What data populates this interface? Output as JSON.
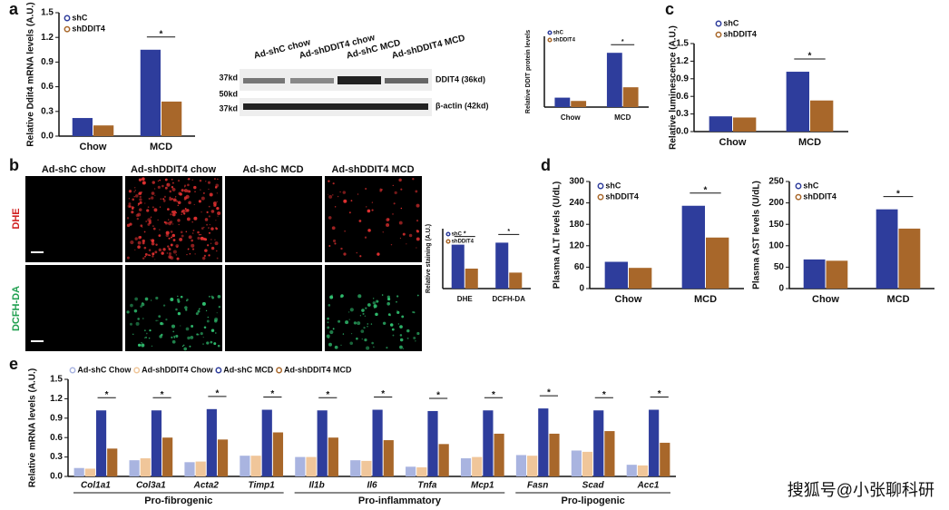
{
  "panel_labels": [
    "a",
    "b",
    "c",
    "d",
    "e"
  ],
  "blot": {
    "lanes": [
      "Ad-shC chow",
      "Ad-shDDIT4 chow",
      "Ad-shC MCD",
      "Ad-shDDIT4 MCD"
    ],
    "markers": [
      "37kd",
      "50kd",
      "37kd"
    ],
    "bands": [
      "DDIT4 (36kd)",
      "β-actin (42kd)"
    ]
  },
  "staining": {
    "columns": [
      "Ad-shC chow",
      "Ad-shDDIT4 chow",
      "Ad-shC MCD",
      "Ad-shDDIT4 MCD"
    ],
    "rows": [
      "DHE",
      "DCFH-DA"
    ]
  },
  "watermark": "搜狐号@小张聊科研",
  "chart_data": [
    {
      "type": "bar",
      "y_label": "Relative Ddit4 mRNA levels (A.U.)",
      "categories": [
        "Chow",
        "MCD"
      ],
      "series": [
        {
          "name": "shC",
          "color": "#2e3d9c",
          "values": [
            0.22,
            1.05
          ]
        },
        {
          "name": "shDDIT4",
          "color": "#a8672a",
          "values": [
            0.13,
            0.42
          ]
        }
      ],
      "significance": [
        null,
        "*"
      ],
      "ylim": [
        0,
        1.5
      ],
      "yticks": [
        {
          "value": 0,
          "label": "0.0"
        },
        0.3,
        0.6,
        0.9,
        1.2,
        1.5
      ]
    },
    {
      "type": "bar",
      "y_label": "Relative DDIT protein levels",
      "categories": [
        "Chow",
        "MCD"
      ],
      "series": [
        {
          "name": "shC",
          "color": "#2e3d9c",
          "values": [
            0.2,
            1.15
          ]
        },
        {
          "name": "shDDIT4",
          "color": "#a8672a",
          "values": [
            0.13,
            0.42
          ]
        }
      ],
      "significance": [
        null,
        "*"
      ],
      "ylim": [
        0,
        1.5
      ]
    },
    {
      "type": "bar",
      "y_label": "Relative luminescence (A.U.)",
      "categories": [
        "Chow",
        "MCD"
      ],
      "series": [
        {
          "name": "shC",
          "color": "#2e3d9c",
          "values": [
            0.26,
            1.02
          ]
        },
        {
          "name": "shDDIT4",
          "color": "#a8672a",
          "values": [
            0.24,
            0.53
          ]
        }
      ],
      "significance": [
        null,
        "*"
      ],
      "ylim": [
        0,
        1.5
      ],
      "yticks": [
        {
          "value": 0,
          "label": "0.0"
        },
        0.3,
        0.6,
        0.9,
        1.2,
        1.5
      ]
    },
    {
      "type": "bar",
      "y_label": "Relative staining (A.U.)",
      "categories": [
        "DHE",
        "DCFH-DA"
      ],
      "series": [
        {
          "name": "shC",
          "color": "#2e3d9c",
          "values": [
            1.1,
            1.15
          ]
        },
        {
          "name": "shDDIT4",
          "color": "#a8672a",
          "values": [
            0.5,
            0.4
          ]
        }
      ],
      "significance": [
        "*",
        "*"
      ],
      "ylim": [
        0,
        1.5
      ]
    },
    {
      "type": "bar",
      "y_label": "Plasma ALT levels (U/dL)",
      "categories": [
        "Chow",
        "MCD"
      ],
      "series": [
        {
          "name": "shC",
          "color": "#2e3d9c",
          "values": [
            75,
            232
          ]
        },
        {
          "name": "shDDIT4",
          "color": "#a8672a",
          "values": [
            58,
            143
          ]
        }
      ],
      "significance": [
        null,
        "*"
      ],
      "ylim": [
        0,
        300
      ],
      "yticks": [
        0,
        60,
        120,
        180,
        240,
        300
      ]
    },
    {
      "type": "bar",
      "y_label": "Plasma AST levels (U/dL)",
      "categories": [
        "Chow",
        "MCD"
      ],
      "series": [
        {
          "name": "shC",
          "color": "#2e3d9c",
          "values": [
            68,
            185
          ]
        },
        {
          "name": "shDDIT4",
          "color": "#a8672a",
          "values": [
            65,
            140
          ]
        }
      ],
      "significance": [
        null,
        "*"
      ],
      "ylim": [
        0,
        250
      ],
      "yticks": [
        0,
        50,
        100,
        150,
        200,
        250
      ]
    },
    {
      "type": "bar",
      "y_label": "Relative mRNA levels (A.U.)",
      "categories": [
        "Col1a1",
        "Col3a1",
        "Acta2",
        "Timp1",
        "Il1b",
        "Il6",
        "Tnfa",
        "Mcp1",
        "Fasn",
        "Scad",
        "Acc1"
      ],
      "groups": [
        "Pro-fibrogenic",
        "Pro-inflammatory",
        "Pro-lipogenic"
      ],
      "series": [
        {
          "name": "Ad-shC Chow",
          "color": "#a9b4e0",
          "values": [
            0.13,
            0.25,
            0.22,
            0.32,
            0.3,
            0.25,
            0.15,
            0.28,
            0.33,
            0.4,
            0.18
          ]
        },
        {
          "name": "Ad-shDDIT4 Chow",
          "color": "#f0c69a",
          "values": [
            0.12,
            0.28,
            0.23,
            0.32,
            0.3,
            0.24,
            0.14,
            0.3,
            0.32,
            0.38,
            0.17
          ]
        },
        {
          "name": "Ad-shC MCD",
          "color": "#2e3d9c",
          "values": [
            1.02,
            1.02,
            1.04,
            1.03,
            1.02,
            1.03,
            1.01,
            1.02,
            1.05,
            1.02,
            1.03
          ]
        },
        {
          "name": "Ad-shDDIT4 MCD",
          "color": "#a8672a",
          "values": [
            0.43,
            0.6,
            0.57,
            0.68,
            0.6,
            0.56,
            0.5,
            0.66,
            0.66,
            0.7,
            0.52
          ]
        }
      ],
      "significance": [
        "*",
        "*",
        "*",
        "*",
        "*",
        "*",
        "*",
        "*",
        "*",
        "*",
        "*"
      ],
      "ylim": [
        0,
        1.5
      ],
      "yticks": [
        {
          "value": 0,
          "label": "0.0"
        },
        0.3,
        0.6,
        0.9,
        1.2,
        1.5
      ]
    }
  ]
}
